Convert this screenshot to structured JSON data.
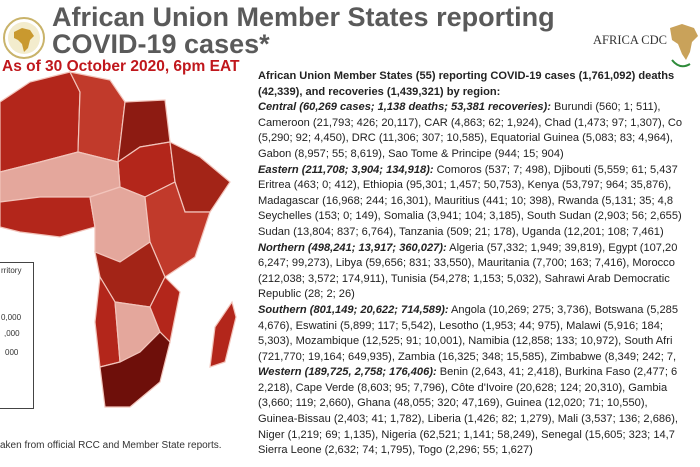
{
  "header": {
    "title_line1": "African Union Member States reporting",
    "title_line2": "COVID-19 cases*",
    "as_of": "As of 30 October 2020, 6pm EAT",
    "logo_right_text": "AFRICA CDC"
  },
  "colors": {
    "title": "#5a5a5a",
    "date": "#c0171c",
    "map_dark": "#6e0f0a",
    "map_mid": "#b3261b",
    "map_light": "#e4a79c"
  },
  "summary_lines": [
    [
      {
        "s": "b",
        "t": "African Union Member States (55) reporting COVID-19 cases (1,761,092) deaths"
      }
    ],
    [
      {
        "s": "b",
        "t": "(42,339), and recoveries (1,439,321) by region:"
      }
    ],
    [
      {
        "s": "bi",
        "t": "Central (60,269 cases; 1,138 deaths; 53,381 recoveries):"
      },
      {
        "s": "n",
        "t": " Burundi (560; 1; 511),"
      }
    ],
    [
      {
        "s": "n",
        "t": "Cameroon (21,793; 426; 20,117), CAR (4,863; 62; 1,924), Chad (1,473; 97; 1,307), Co"
      }
    ],
    [
      {
        "s": "n",
        "t": "(5,290; 92; 4,450), DRC (11,306; 307; 10,585), Equatorial Guinea (5,083; 83; 4,964),"
      }
    ],
    [
      {
        "s": "n",
        "t": "Gabon (8,957; 55; 8,619), Sao Tome & Principe (944; 15; 904)"
      }
    ],
    [
      {
        "s": "bi",
        "t": "Eastern (211,708; 3,904; 134,918):"
      },
      {
        "s": "n",
        "t": " Comoros (537; 7; 498), Djibouti (5,559; 61; 5,437"
      }
    ],
    [
      {
        "s": "n",
        "t": "Eritrea (463; 0; 412), Ethiopia (95,301; 1,457; 50,753), Kenya (53,797; 964; 35,876),"
      }
    ],
    [
      {
        "s": "n",
        "t": "Madagascar (16,968; 244; 16,301), Mauritius (441; 10; 398), Rwanda (5,131; 35; 4,8"
      }
    ],
    [
      {
        "s": "n",
        "t": "Seychelles (153; 0; 149), Somalia (3,941; 104; 3,185), South Sudan (2,903; 56; 2,655)"
      }
    ],
    [
      {
        "s": "n",
        "t": "Sudan (13,804; 837; 6,764), Tanzania (509; 21; 178), Uganda (12,201; 108; 7,461)"
      }
    ],
    [
      {
        "s": "bi",
        "t": "Northern (498,241; 13,917; 360,027):"
      },
      {
        "s": "n",
        "t": " Algeria (57,332; 1,949; 39,819), Egypt (107,20"
      }
    ],
    [
      {
        "s": "n",
        "t": "6,247; 99,273), Libya (59,656; 831; 33,550), Mauritania (7,700; 163; 7,416), Morocco"
      }
    ],
    [
      {
        "s": "n",
        "t": "(212,038; 3,572; 174,911), Tunisia (54,278; 1,153; 5,032), Sahrawi Arab Democratic"
      }
    ],
    [
      {
        "s": "n",
        "t": "Republic (28; 2; 26)"
      }
    ],
    [
      {
        "s": "bi",
        "t": "Southern (801,149; 20,622; 714,589):"
      },
      {
        "s": "n",
        "t": " Angola (10,269; 275; 3,736), Botswana (5,285"
      }
    ],
    [
      {
        "s": "n",
        "t": "4,676), Eswatini (5,899; 117; 5,542), Lesotho (1,953; 44; 975), Malawi (5,916; 184;"
      }
    ],
    [
      {
        "s": "n",
        "t": "5,303), Mozambique (12,525; 91; 10,001), Namibia (12,858; 133; 10,972), South Afri"
      }
    ],
    [
      {
        "s": "n",
        "t": "(721,770; 19,164; 649,935), Zambia (16,325; 348; 15,585), Zimbabwe (8,349; 242; 7,"
      }
    ],
    [
      {
        "s": "bi",
        "t": "Western (189,725, 2,758; 176,406):"
      },
      {
        "s": "n",
        "t": " Benin (2,643, 41; 2,418), Burkina Faso (2,477; 6"
      }
    ],
    [
      {
        "s": "n",
        "t": "2,218), Cape Verde (8,603; 95; 7,796), Côte d'Ivoire (20,628; 124; 20,310), Gambia"
      }
    ],
    [
      {
        "s": "n",
        "t": "(3,660; 119; 2,660), Ghana (48,055; 320; 47,169), Guinea (12,020; 71; 10,550),"
      }
    ],
    [
      {
        "s": "n",
        "t": "Guinea-Bissau (2,403; 41; 1,782), Liberia (1,426; 82; 1,279), Mali (3,537; 136; 2,686),"
      }
    ],
    [
      {
        "s": "n",
        "t": "Niger (1,219; 69; 1,135), Nigeria (62,521; 1,141; 58,249), Senegal (15,605; 323; 14,7"
      }
    ],
    [
      {
        "s": "n",
        "t": "Sierra Leone (2,632; 74; 1,795), Togo (2,296; 55; 1,627)"
      }
    ]
  ],
  "legend": {
    "items": [
      "rritory",
      "0,000",
      ",000",
      "000"
    ]
  },
  "footnote": "aken from official RCC and Member State reports."
}
